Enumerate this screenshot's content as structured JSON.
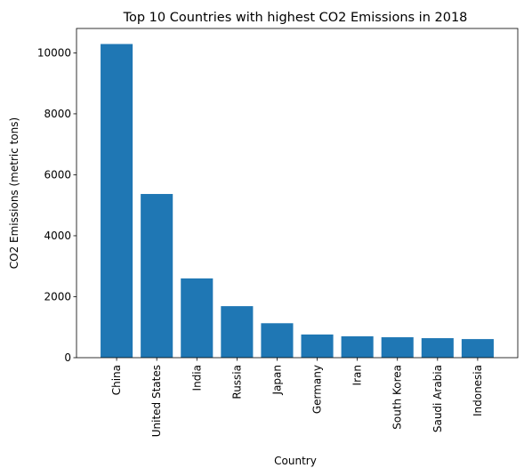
{
  "chart_data": {
    "type": "bar",
    "title": "Top 10 Countries with highest CO2 Emissions in 2018",
    "xlabel": "Country",
    "ylabel": "CO2 Emissions (metric tons)",
    "categories": [
      "China",
      "United States",
      "India",
      "Russia",
      "Japan",
      "Germany",
      "Iran",
      "South Korea",
      "Saudi Arabia",
      "Indonesia"
    ],
    "values": [
      10290,
      5370,
      2600,
      1690,
      1130,
      760,
      700,
      670,
      640,
      610
    ],
    "ylim": [
      0,
      10800
    ],
    "yticks": [
      0,
      2000,
      4000,
      6000,
      8000,
      10000
    ],
    "grid": false,
    "bar_color": "#1f77b4"
  }
}
